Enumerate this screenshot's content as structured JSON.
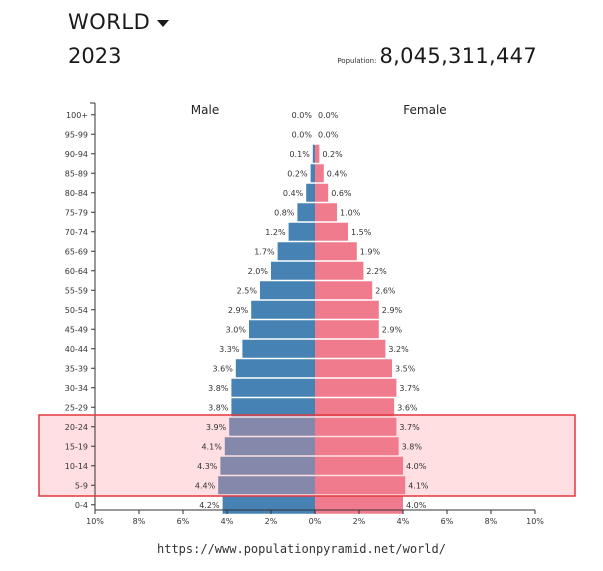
{
  "header": {
    "region": "WORLD",
    "year": "2023",
    "population_label": "Population:",
    "population_value": "8,045,311,447"
  },
  "footer": {
    "url": "https://www.populationpyramid.net/world/"
  },
  "colors": {
    "male": "#4682b4",
    "female": "#f07b8c",
    "highlight_fill": "#ffdfe2",
    "highlight_border": "#e0393e",
    "male_highlight": "#8489ab"
  },
  "chart_data": {
    "type": "bar",
    "orientation": "horizontal-butterfly",
    "categories": [
      "100+",
      "95-99",
      "90-94",
      "85-89",
      "80-84",
      "75-79",
      "70-74",
      "65-69",
      "60-64",
      "55-59",
      "50-54",
      "45-49",
      "40-44",
      "35-39",
      "30-34",
      "25-29",
      "20-24",
      "15-19",
      "10-14",
      "5-9",
      "0-4"
    ],
    "series": [
      {
        "name": "Male",
        "values": [
          0.0,
          0.0,
          0.1,
          0.2,
          0.4,
          0.8,
          1.2,
          1.7,
          2.0,
          2.5,
          2.9,
          3.0,
          3.3,
          3.6,
          3.8,
          3.8,
          3.9,
          4.1,
          4.3,
          4.4,
          4.2
        ],
        "labels": [
          "0.0%",
          "0.0%",
          "0.1%",
          "0.2%",
          "0.4%",
          "0.8%",
          "1.2%",
          "1.7%",
          "2.0%",
          "2.5%",
          "2.9%",
          "3.0%",
          "3.3%",
          "3.6%",
          "3.8%",
          "3.8%",
          "3.9%",
          "4.1%",
          "4.3%",
          "4.4%",
          "4.2%"
        ]
      },
      {
        "name": "Female",
        "values": [
          0.0,
          0.0,
          0.2,
          0.4,
          0.6,
          1.0,
          1.5,
          1.9,
          2.2,
          2.6,
          2.9,
          2.9,
          3.2,
          3.5,
          3.7,
          3.6,
          3.7,
          3.8,
          4.0,
          4.1,
          4.0
        ],
        "labels": [
          "0.0%",
          "0.0%",
          "0.2%",
          "0.4%",
          "0.6%",
          "1.0%",
          "1.5%",
          "1.9%",
          "2.2%",
          "2.6%",
          "2.9%",
          "2.9%",
          "3.2%",
          "3.5%",
          "3.7%",
          "3.6%",
          "3.7%",
          "3.8%",
          "4.0%",
          "4.1%",
          "4.0%"
        ]
      }
    ],
    "xlim": [
      -10,
      10
    ],
    "x_ticks": [
      "10%",
      "8%",
      "6%",
      "4%",
      "2%",
      "0%",
      "2%",
      "4%",
      "6%",
      "8%",
      "10%"
    ],
    "highlighted_categories": [
      "20-24",
      "15-19",
      "10-14",
      "5-9"
    ],
    "grid": false
  }
}
